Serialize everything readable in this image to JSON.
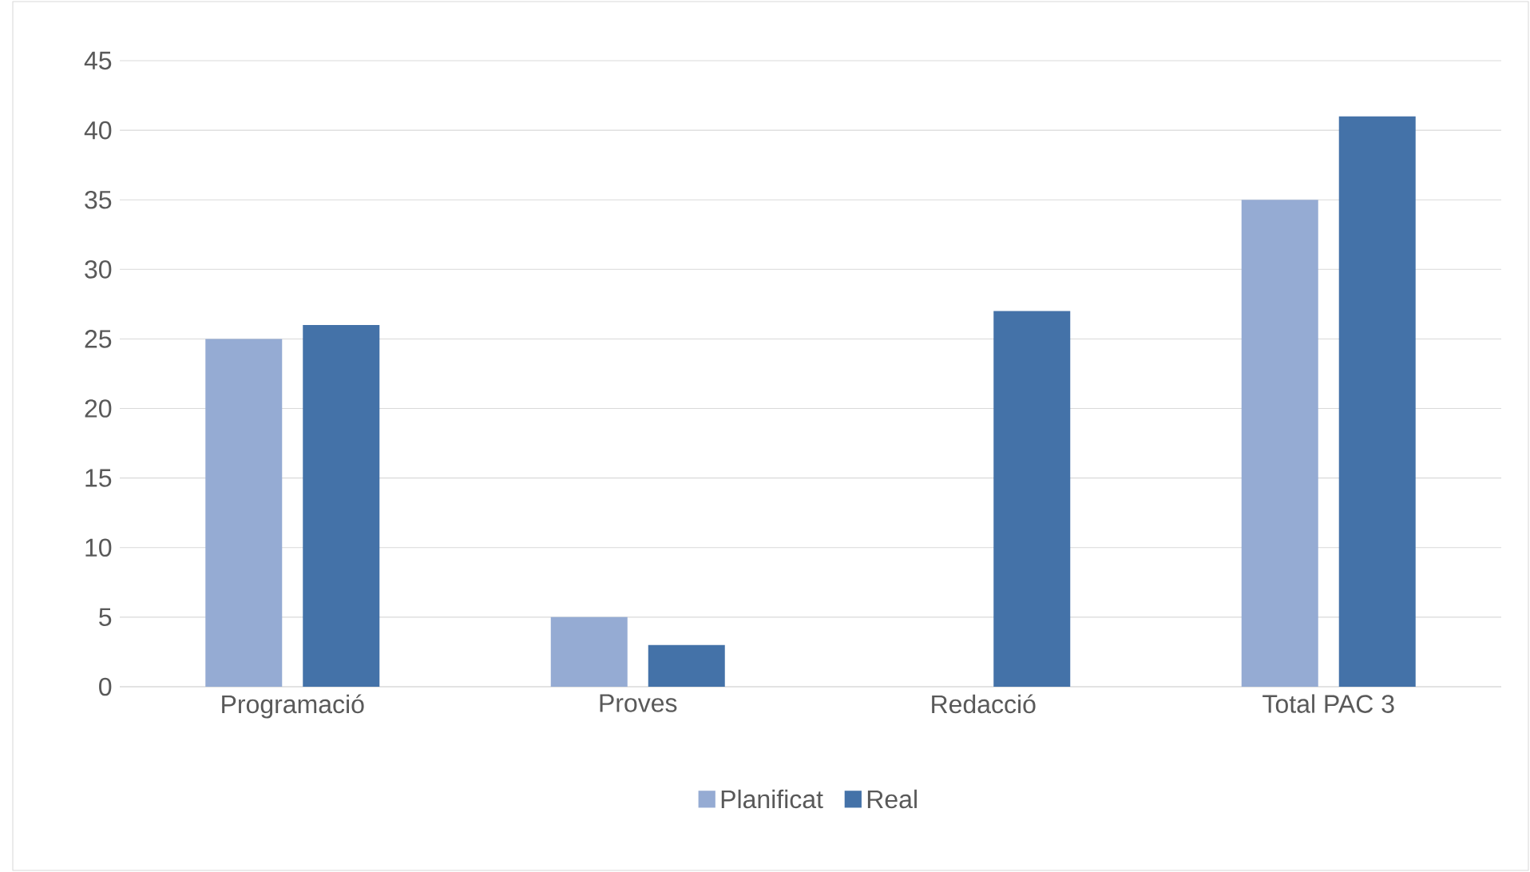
{
  "chart_data": {
    "type": "bar",
    "categories": [
      "Programació",
      "Proves",
      "Redacció",
      "Total PAC 3"
    ],
    "series": [
      {
        "name": "Planificat",
        "color": "#95abd3",
        "values": [
          25,
          5,
          null,
          35
        ]
      },
      {
        "name": "Real",
        "color": "#4472a8",
        "values": [
          26,
          3,
          27,
          41
        ]
      }
    ],
    "ylim": [
      0,
      45
    ],
    "yticks": [
      0,
      5,
      10,
      15,
      20,
      25,
      30,
      35,
      40,
      45
    ],
    "grid": "y",
    "legend": "bottom"
  }
}
